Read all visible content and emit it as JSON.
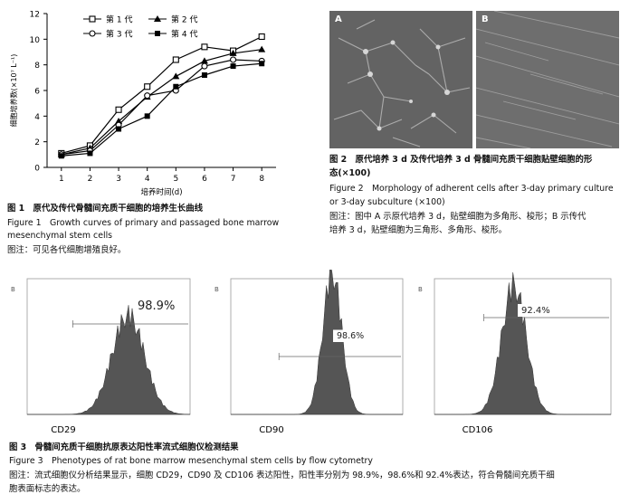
{
  "fig1": {
    "chart_data": {
      "type": "line",
      "xlabel": "培养时间(d)",
      "ylabel": "细胞培养数(×10⁷ L⁻¹)",
      "x": [
        1,
        2,
        3,
        4,
        5,
        6,
        7,
        8
      ],
      "xlim": [
        0.5,
        8.5
      ],
      "ylim": [
        0,
        12
      ],
      "yticks": [
        0,
        2,
        4,
        6,
        8,
        10,
        12
      ],
      "series": [
        {
          "name": "第 1 代",
          "marker": "square",
          "values": [
            1.1,
            1.7,
            4.5,
            6.3,
            8.4,
            9.4,
            9.1,
            10.2
          ]
        },
        {
          "name": "第 2 代",
          "marker": "triangle",
          "values": [
            1.0,
            1.5,
            3.6,
            5.5,
            7.1,
            8.3,
            8.9,
            9.2
          ]
        },
        {
          "name": "第 3 代",
          "marker": "circle",
          "values": [
            1.0,
            1.3,
            3.3,
            5.6,
            6.0,
            7.9,
            8.4,
            8.3
          ]
        },
        {
          "name": "第 4 代",
          "marker": "filled-square",
          "values": [
            0.9,
            1.1,
            3.0,
            4.0,
            6.3,
            7.2,
            7.9,
            8.1
          ]
        }
      ]
    },
    "caption_cn": "图 1　原代及传代骨髓间充质干细胞的培养生长曲线",
    "caption_en_1": "Figure 1　Growth curves of primary and passaged bone marrow",
    "caption_en_2": "mesenchymal stem cells",
    "note": "图注：可见各代细胞增殖良好。"
  },
  "fig2": {
    "panel_a_label": "A",
    "panel_b_label": "B",
    "caption_cn_1": "图 2　原代培养 3 d 及传代培养 3 d 骨髓间充质干细胞贴壁细胞的形",
    "caption_cn_2": "态(×100)",
    "caption_en_1": "Figure 2　Morphology of adherent cells after 3-day primary culture",
    "caption_en_2": "or 3-day subculture (×100)",
    "note_1": "图注：图中 A 示原代培养 3 d，贴壁细胞为多角形、梭形；B 示传代",
    "note_2": "培养 3 d，贴壁细胞为三角形、多角形、梭形。"
  },
  "fig3": {
    "panels": [
      {
        "marker_label": "B",
        "percent": "98.9%",
        "name": "CD29"
      },
      {
        "marker_label": "B",
        "percent": "98.6%",
        "name": "CD90"
      },
      {
        "marker_label": "B",
        "percent": "92.4%",
        "name": "CD106"
      }
    ],
    "caption_cn": "图 3　骨髓间充质干细胞抗原表达阳性率流式细胞仪检测结果",
    "caption_en": "Figure 3　Phenotypes of rat bone marrow mesenchymal stem cells by flow cytometry",
    "note_1": "图注：流式细胞仪分析结果显示，细胞 CD29，CD90 及 CD106 表达阳性，阳性率分别为 98.9%，98.6%和 92.4%表达，符合骨髓间充质干细",
    "note_2": "胞表面标志的表达。"
  }
}
